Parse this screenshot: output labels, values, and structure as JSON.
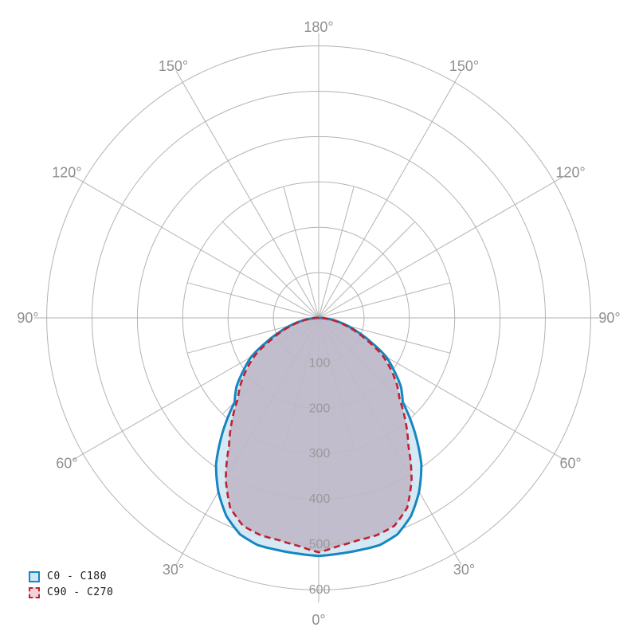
{
  "legend": {
    "items": [
      {
        "label": "C0 - C180",
        "style": "solid"
      },
      {
        "label": "C90 - C270",
        "style": "dashed"
      }
    ]
  },
  "colors": {
    "c0_stroke": "#1686bf",
    "c0_fill": "#cfe7f4",
    "c90_stroke": "#c2202f",
    "c90_fill_overlay": "rgba(141,58,86,0.25)",
    "grid": "#b3b3b3",
    "angle_label": "#8f8f8f",
    "radial_label": "#999999",
    "background": "#ffffff"
  },
  "chart_data": {
    "type": "polar",
    "title": "",
    "description": "Photometric luminous intensity distribution (polar curve), lower hemisphere beam",
    "angle_tick_labels": [
      "0°",
      "30°",
      "60°",
      "90°",
      "120°",
      "150°",
      "180°"
    ],
    "angle_labels_both_sides_deg": [
      0,
      30,
      60,
      90,
      120,
      150,
      180
    ],
    "angle_grid_major_step_deg": 30,
    "angle_grid_minor_step_deg": 15,
    "radial_ticks": [
      100,
      200,
      300,
      400,
      500,
      600
    ],
    "radial_axis_max": 600,
    "grid": "on",
    "legend_position": "bottom-left",
    "gamma_deg": [
      0,
      5,
      10,
      15,
      20,
      25,
      30,
      35,
      40,
      45,
      50,
      55,
      60,
      65,
      70,
      75,
      80,
      85,
      90
    ],
    "series": [
      {
        "name": "C0 - C180",
        "line": "solid",
        "values": [
          525,
          522,
          520,
          519,
          508,
          482,
          443,
          395,
          330,
          262,
          237,
          203,
          172,
          128,
          93,
          64,
          40,
          18,
          0
        ]
      },
      {
        "name": "C90 - C270",
        "line": "dashed",
        "values": [
          517,
          505,
          498,
          496,
          488,
          462,
          410,
          345,
          298,
          252,
          224,
          192,
          160,
          118,
          86,
          58,
          36,
          16,
          0
        ]
      }
    ]
  }
}
